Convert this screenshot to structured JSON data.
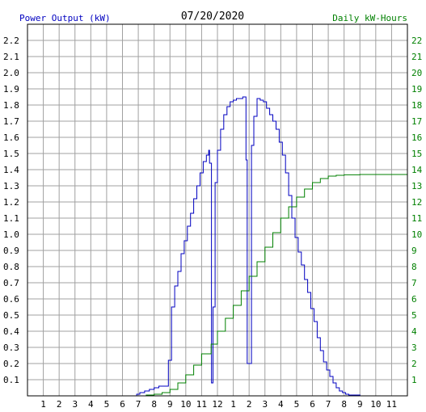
{
  "chart_data": {
    "type": "line",
    "title": "07/20/2020",
    "ylabel_left": "Power Output (kW)",
    "ylabel_right": "Daily kW-Hours",
    "left_axis": {
      "range": [
        0,
        2.3
      ],
      "ticks": [
        "0.1",
        "0.2",
        "0.3",
        "0.4",
        "0.5",
        "0.6",
        "0.7",
        "0.8",
        "0.9",
        "1.0",
        "1.1",
        "1.2",
        "1.3",
        "1.4",
        "1.5",
        "1.6",
        "1.7",
        "1.8",
        "1.9",
        "2.0",
        "2.1",
        "2.2"
      ]
    },
    "right_axis": {
      "range": [
        0,
        23
      ],
      "ticks": [
        "1",
        "2",
        "3",
        "4",
        "5",
        "6",
        "7",
        "8",
        "9",
        "10",
        "11",
        "12",
        "13",
        "14",
        "15",
        "16",
        "17",
        "18",
        "19",
        "20",
        "21",
        "22"
      ]
    },
    "x_axis": {
      "range": [
        0,
        24
      ],
      "ticks": [
        "1",
        "2",
        "3",
        "4",
        "5",
        "6",
        "7",
        "8",
        "9",
        "10",
        "11",
        "12",
        "1",
        "2",
        "3",
        "4",
        "5",
        "6",
        "7",
        "8",
        "9",
        "10",
        "11"
      ]
    },
    "grid": true,
    "series": [
      {
        "axis": "left",
        "color": "#0000c0",
        "points": [
          [
            6.75,
            0
          ],
          [
            6.9,
            0.01
          ],
          [
            7.1,
            0.02
          ],
          [
            7.4,
            0.03
          ],
          [
            7.7,
            0.04
          ],
          [
            8.0,
            0.05
          ],
          [
            8.3,
            0.06
          ],
          [
            8.6,
            0.06
          ],
          [
            8.9,
            0.22
          ],
          [
            9.1,
            0.55
          ],
          [
            9.3,
            0.68
          ],
          [
            9.5,
            0.77
          ],
          [
            9.7,
            0.88
          ],
          [
            9.9,
            0.96
          ],
          [
            10.1,
            1.05
          ],
          [
            10.3,
            1.13
          ],
          [
            10.5,
            1.22
          ],
          [
            10.7,
            1.3
          ],
          [
            10.9,
            1.38
          ],
          [
            11.1,
            1.45
          ],
          [
            11.3,
            1.49
          ],
          [
            11.45,
            1.52
          ],
          [
            11.5,
            1.44
          ],
          [
            11.62,
            0.08
          ],
          [
            11.72,
            0.55
          ],
          [
            11.85,
            1.32
          ],
          [
            12.0,
            1.52
          ],
          [
            12.2,
            1.65
          ],
          [
            12.4,
            1.74
          ],
          [
            12.6,
            1.79
          ],
          [
            12.8,
            1.82
          ],
          [
            13.0,
            1.83
          ],
          [
            13.2,
            1.84
          ],
          [
            13.4,
            1.84
          ],
          [
            13.6,
            1.85
          ],
          [
            13.75,
            1.85
          ],
          [
            13.8,
            1.46
          ],
          [
            13.88,
            0.2
          ],
          [
            14.05,
            0.2
          ],
          [
            14.15,
            1.55
          ],
          [
            14.3,
            1.73
          ],
          [
            14.5,
            1.84
          ],
          [
            14.7,
            1.83
          ],
          [
            14.9,
            1.82
          ],
          [
            15.1,
            1.78
          ],
          [
            15.3,
            1.74
          ],
          [
            15.5,
            1.7
          ],
          [
            15.7,
            1.65
          ],
          [
            15.9,
            1.57
          ],
          [
            16.1,
            1.49
          ],
          [
            16.3,
            1.38
          ],
          [
            16.5,
            1.24
          ],
          [
            16.7,
            1.1
          ],
          [
            16.9,
            0.98
          ],
          [
            17.1,
            0.89
          ],
          [
            17.3,
            0.81
          ],
          [
            17.5,
            0.72
          ],
          [
            17.7,
            0.64
          ],
          [
            17.9,
            0.54
          ],
          [
            18.1,
            0.46
          ],
          [
            18.3,
            0.36
          ],
          [
            18.5,
            0.28
          ],
          [
            18.7,
            0.21
          ],
          [
            18.9,
            0.16
          ],
          [
            19.1,
            0.12
          ],
          [
            19.3,
            0.08
          ],
          [
            19.5,
            0.05
          ],
          [
            19.7,
            0.03
          ],
          [
            19.9,
            0.02
          ],
          [
            20.1,
            0.01
          ],
          [
            20.3,
            0.005
          ],
          [
            20.8,
            0.005
          ],
          [
            21.0,
            0
          ]
        ]
      },
      {
        "axis": "right",
        "color": "#008000",
        "points": [
          [
            6.75,
            0
          ],
          [
            7.5,
            0.05
          ],
          [
            8.0,
            0.1
          ],
          [
            8.5,
            0.2
          ],
          [
            9.0,
            0.4
          ],
          [
            9.5,
            0.8
          ],
          [
            10.0,
            1.3
          ],
          [
            10.5,
            1.9
          ],
          [
            11.0,
            2.6
          ],
          [
            11.6,
            3.2
          ],
          [
            12.0,
            4.0
          ],
          [
            12.5,
            4.8
          ],
          [
            13.0,
            5.6
          ],
          [
            13.5,
            6.5
          ],
          [
            14.0,
            7.4
          ],
          [
            14.5,
            8.3
          ],
          [
            15.0,
            9.2
          ],
          [
            15.5,
            10.1
          ],
          [
            16.0,
            11.0
          ],
          [
            16.5,
            11.7
          ],
          [
            17.0,
            12.3
          ],
          [
            17.5,
            12.8
          ],
          [
            18.0,
            13.2
          ],
          [
            18.5,
            13.45
          ],
          [
            19.0,
            13.6
          ],
          [
            19.5,
            13.65
          ],
          [
            20.0,
            13.68
          ],
          [
            21.0,
            13.7
          ],
          [
            24.0,
            13.7
          ]
        ]
      }
    ]
  }
}
